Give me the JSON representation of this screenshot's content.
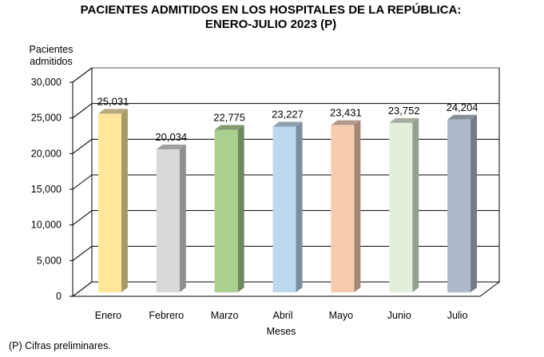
{
  "chart_data": {
    "type": "bar",
    "title_lines": [
      "PACIENTES ADMITIDOS EN LOS HOSPITALES DE LA REPÚBLICA:",
      "ENERO-JULIO 2023 (P)"
    ],
    "ylabel_lines": [
      "Pacientes",
      "admitidos"
    ],
    "xlabel": "Meses",
    "categories": [
      "Enero",
      "Febrero",
      "Marzo",
      "Abril",
      "Mayo",
      "Junio",
      "Julio"
    ],
    "values": [
      25031,
      20034,
      22775,
      23227,
      23431,
      23752,
      24204
    ],
    "value_labels": [
      "25,031",
      "20,034",
      "22,775",
      "23,227",
      "23,431",
      "23,752",
      "24,204"
    ],
    "ylim": [
      0,
      30000
    ],
    "yticks": [
      0,
      5000,
      10000,
      15000,
      20000,
      25000,
      30000
    ],
    "ytick_labels": [
      "0",
      "5,000",
      "10,000",
      "15,000",
      "20,000",
      "25,000",
      "30,000"
    ],
    "grid": true,
    "style": "3d-column",
    "colors": [
      "#FFE699",
      "#D9D9D9",
      "#A9D08E",
      "#BDD7EE",
      "#F8CBAD",
      "#E2EFDA",
      "#ADB9CA"
    ],
    "side_colors": [
      "#A89A66",
      "#8F8F8F",
      "#6E8A5C",
      "#7D8EA0",
      "#A5877A",
      "#94A090",
      "#737B87"
    ]
  },
  "footnote": "(P) Cifras preliminares."
}
